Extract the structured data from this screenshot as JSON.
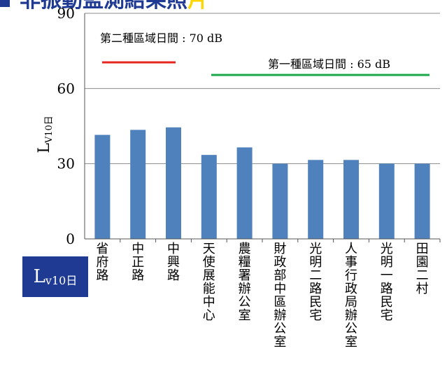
{
  "header": {
    "segments": [
      {
        "text": "非振動監測結果照",
        "color": "#1f3a93"
      },
      {
        "text": "片",
        "color": "#ffd700"
      }
    ]
  },
  "chart_data": {
    "type": "bar",
    "ylabel_main": "L",
    "ylabel_sub": "V10日",
    "ylim": [
      0,
      90
    ],
    "yticks": [
      0,
      30,
      60,
      90
    ],
    "grid": true,
    "bar_color": "#4f81bd",
    "categories": [
      "省府路",
      "中正路",
      "中興路",
      "天使展能中心",
      "農糧署辦公室",
      "財政部中區辦公室",
      "光明二路民宅",
      "人事行政局辦公室",
      "光明一路民宅",
      "田園二村"
    ],
    "values": [
      41.5,
      43.5,
      44.5,
      33.5,
      36.5,
      30,
      31.5,
      31.5,
      30,
      30
    ],
    "reference_lines": [
      {
        "label": "第二種區域日間 : 70 dB",
        "value": 70,
        "color": "#e8251f",
        "legend_position": "top-left"
      },
      {
        "label": "第一種區域日間 : 65 dB",
        "value": 65,
        "color": "#1aa84a",
        "legend_position": "top-right"
      }
    ]
  },
  "corner_label": {
    "main": "L",
    "sub": "v10日"
  }
}
